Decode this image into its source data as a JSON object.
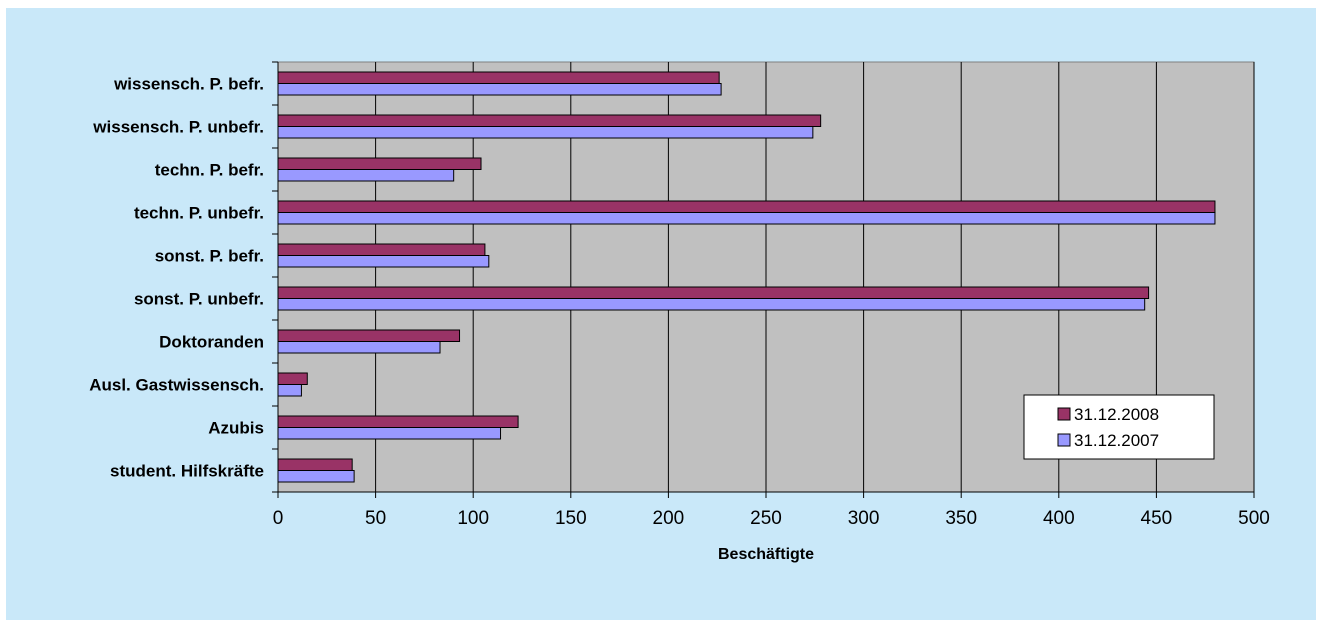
{
  "chart_data": {
    "type": "bar",
    "orientation": "horizontal",
    "categories": [
      "wissensch. P. befr.",
      "wissensch. P. unbefr.",
      "techn. P. befr.",
      "techn. P. unbefr.",
      "sonst. P. befr.",
      "sonst. P. unbefr.",
      "Doktoranden",
      "Ausl. Gastwissensch.",
      "Azubis",
      "student. Hilfskräfte"
    ],
    "series": [
      {
        "name": "31.12.2008",
        "color": "#993366",
        "values": [
          226,
          278,
          104,
          480,
          106,
          446,
          93,
          15,
          123,
          38
        ]
      },
      {
        "name": "31.12.2007",
        "color": "#9999ff",
        "values": [
          227,
          274,
          90,
          480,
          108,
          444,
          83,
          12,
          114,
          39
        ]
      }
    ],
    "xlabel": "Beschäftigte",
    "ylabel": "",
    "xlim": [
      0,
      500
    ],
    "xticks": [
      0,
      50,
      100,
      150,
      200,
      250,
      300,
      350,
      400,
      450,
      500
    ],
    "grid": true,
    "legend_position": "bottom-right",
    "plot_background": "#c0c0c0",
    "chart_background": "#c9e8f9"
  }
}
